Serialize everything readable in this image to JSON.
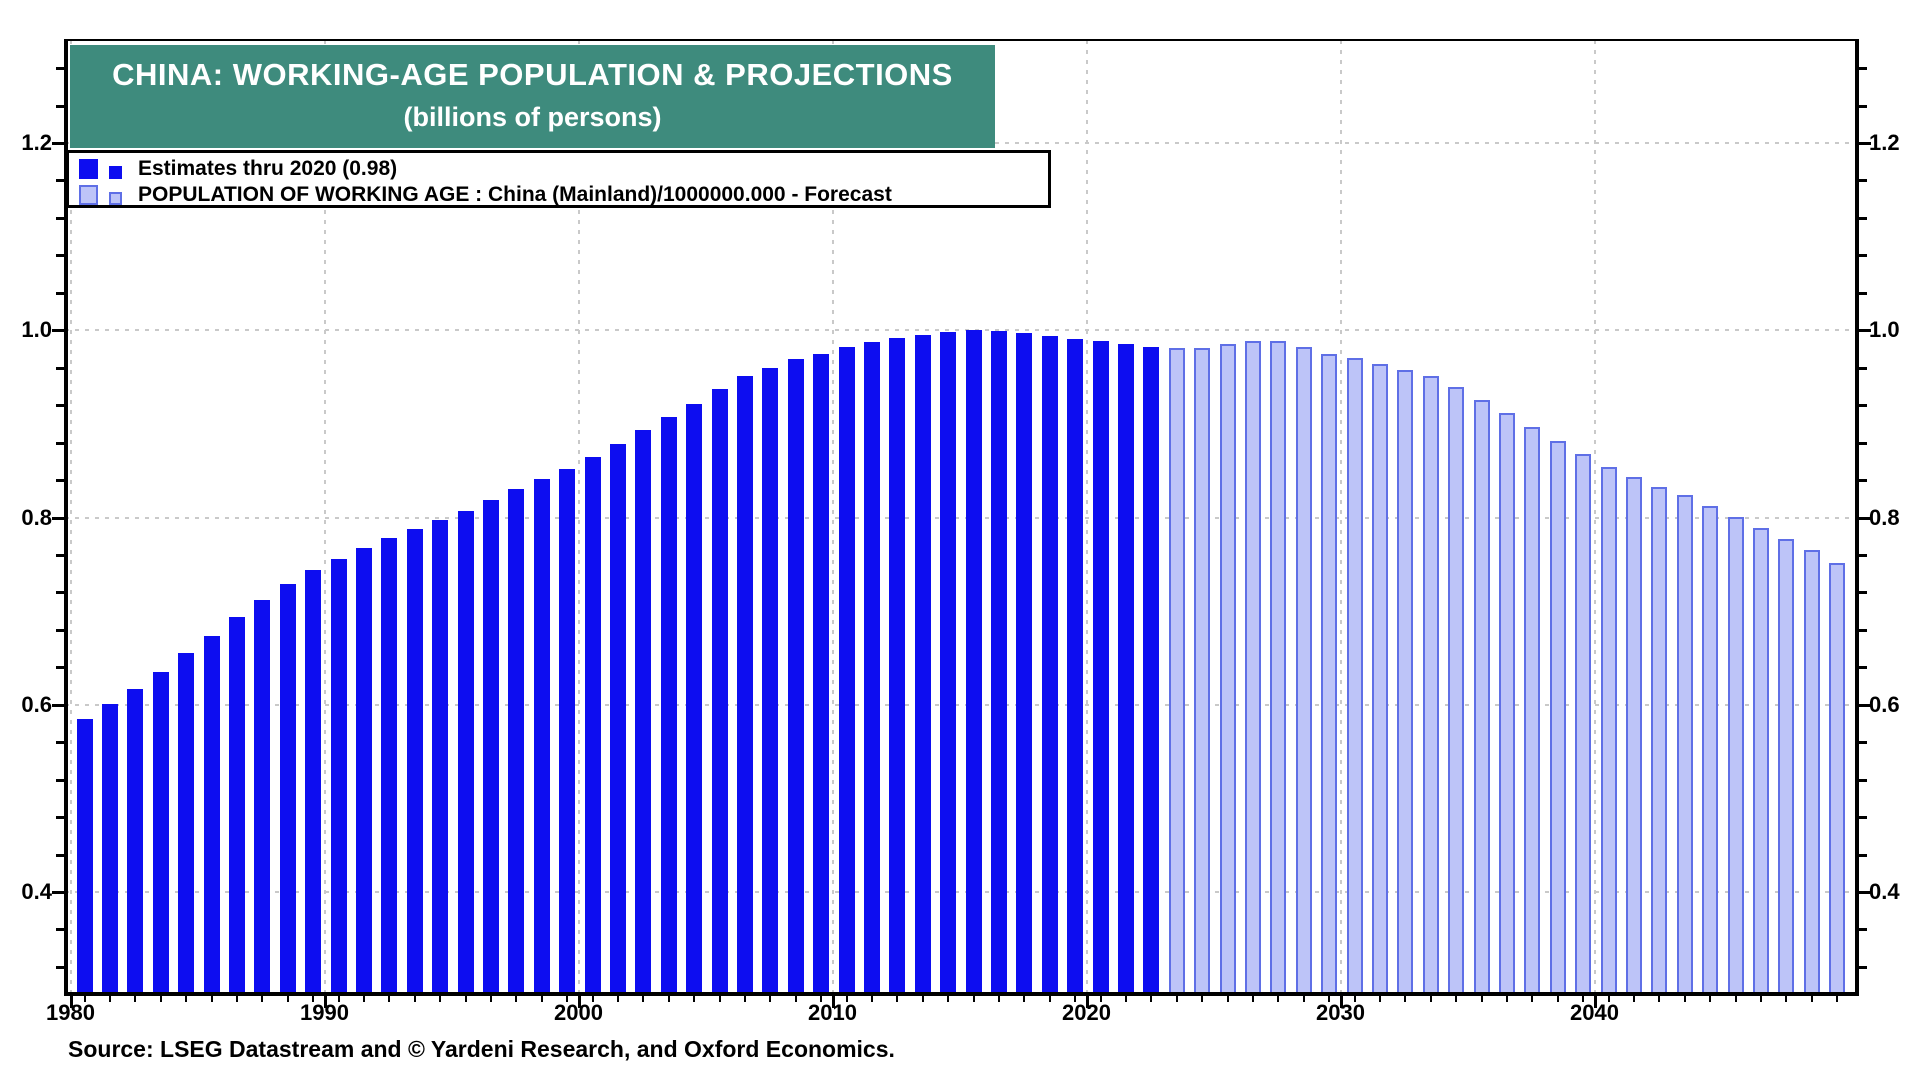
{
  "title": {
    "line1": "CHINA: WORKING-AGE POPULATION & PROJECTIONS",
    "line2": "(billions of persons)"
  },
  "legend": [
    {
      "label": "Estimates thru 2020 (0.98)",
      "series": "estimates"
    },
    {
      "label": "POPULATION OF WORKING AGE : China (Mainland)/1000000.000 - Forecast",
      "series": "forecast"
    }
  ],
  "source": "Source: LSEG Datastream and © Yardeni Research, and Oxford Economics.",
  "colors": {
    "banner": "#3e8b7d",
    "estimate_bar": "#0d0df0",
    "forecast_fill": "#bdc4f8",
    "forecast_border": "#5f6fe6",
    "grid": "#c9c9c9"
  },
  "chart_data": {
    "type": "bar",
    "title": "CHINA: WORKING-AGE POPULATION & PROJECTIONS (billions of persons)",
    "ylabel": "billions of persons",
    "ylim": [
      0.29,
      1.31
    ],
    "yticks": [
      0.4,
      0.6,
      0.8,
      1.0,
      1.2
    ],
    "xticks": [
      1980,
      1990,
      2000,
      2010,
      2020,
      2030,
      2040
    ],
    "grid": true,
    "legend_position": "top-left",
    "forecast_start_year": 2023,
    "last_estimate_label": "0.98",
    "years": [
      1980,
      1981,
      1982,
      1983,
      1984,
      1985,
      1986,
      1987,
      1988,
      1989,
      1990,
      1991,
      1992,
      1993,
      1994,
      1995,
      1996,
      1997,
      1998,
      1999,
      2000,
      2001,
      2002,
      2003,
      2004,
      2005,
      2006,
      2007,
      2008,
      2009,
      2010,
      2011,
      2012,
      2013,
      2014,
      2015,
      2016,
      2017,
      2018,
      2019,
      2020,
      2021,
      2022,
      2023,
      2024,
      2025,
      2026,
      2027,
      2028,
      2029,
      2030,
      2031,
      2032,
      2033,
      2034,
      2035,
      2036,
      2037,
      2038,
      2039,
      2040,
      2041,
      2042,
      2043,
      2044,
      2045,
      2046,
      2047,
      2048,
      2049
    ],
    "values": [
      0.585,
      0.601,
      0.617,
      0.635,
      0.655,
      0.673,
      0.694,
      0.712,
      0.729,
      0.744,
      0.756,
      0.767,
      0.778,
      0.788,
      0.797,
      0.807,
      0.819,
      0.83,
      0.841,
      0.852,
      0.865,
      0.878,
      0.893,
      0.907,
      0.921,
      0.937,
      0.951,
      0.96,
      0.969,
      0.975,
      0.982,
      0.987,
      0.992,
      0.995,
      0.998,
      1.0,
      0.999,
      0.997,
      0.994,
      0.991,
      0.988,
      0.985,
      0.982,
      0.981,
      0.981,
      0.985,
      0.988,
      0.988,
      0.982,
      0.975,
      0.97,
      0.964,
      0.958,
      0.951,
      0.939,
      0.926,
      0.912,
      0.897,
      0.882,
      0.868,
      0.854,
      0.843,
      0.833,
      0.824,
      0.812,
      0.801,
      0.789,
      0.777,
      0.765,
      0.751
    ]
  }
}
